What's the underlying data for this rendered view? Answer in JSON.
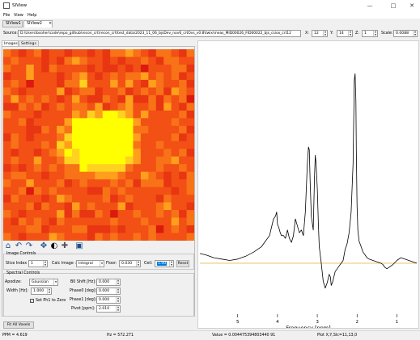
{
  "window": {
    "title": "SIView"
  },
  "menu": [
    "File",
    "View",
    "Help"
  ],
  "doc_tabs": [
    {
      "label": "SIView1"
    },
    {
      "label": "SIView2"
    }
  ],
  "source": {
    "label": "Source:",
    "path": "D:\\Users\\bsoher\\code\\repo_github\\recon_crt\\recon_crt\\test_data\\2023_11_06_bjsDev_nov6_crtOvs_v0.8\\twix\\meas_MID00026_FID00022_bjs_csiox_crt12",
    "x_label": "X:",
    "x_value": "12",
    "y_label": "Y:",
    "y_value": "14",
    "z_label": "Z:",
    "z_value": "1",
    "scale_label": "Scale:",
    "scale_value": "0.0088"
  },
  "left_tabs": [
    {
      "label": "Images"
    },
    {
      "label": "Settings"
    }
  ],
  "heatmap": {
    "colors": [
      "#dc1a0d",
      "#e83512",
      "#f25015",
      "#f87218",
      "#ff9f1c",
      "#ffd21f",
      "#ffff00"
    ],
    "rows": [
      "3212312212212133432133213",
      "2322212134322121223213322",
      "3224213222212112120222331",
      "1224222123421232334232312",
      "2320222133522242421432231",
      "3212222412331223123231432",
      "2423232124211321411313230",
      "1132312323324123422314213",
      "3222122224354665424222231",
      "2231222246666666642222322",
      "2221132436666666633222231",
      "1321222356666666642222312",
      "2322232546666666632232222",
      "2122123465666666642223231",
      "2322422355666666542233422",
      "1212323233655555322232232",
      "2332212233334443224321213",
      "3224222312322232313331223",
      "2230323222211323222222123",
      "1322212432222312322213222",
      "2223132214232224122234221",
      "3212222413113202232232313",
      "2132321322222232223222423",
      "2223312223311121222302321",
      "3212224322213232232322223"
    ]
  },
  "toolbar_icons": [
    "home-icon",
    "undo-icon",
    "redo-icon",
    "pan-icon",
    "contrast-icon",
    "crosshair-icon",
    "save-icon"
  ],
  "image_controls": {
    "title": "Image Controls",
    "slice_label": "Slice Index :",
    "slice_value": "1",
    "calc_label": "Calc Image :",
    "calc_value": "Integral",
    "floor_label": "Floor:",
    "floor_value": "0.030",
    "ceil_label": "Ceil:",
    "ceil_value": "1.00",
    "reset_label": "Reset"
  },
  "spectral_controls": {
    "title": "Spectral Controls",
    "apodize_label": "Apodize:",
    "apodize_value": "Gaussian",
    "width_label": "Width [Hz]:",
    "width_value": "1.000",
    "setph_label": "Set Ph1 to Zero",
    "setph_checked": "✓",
    "b0_label": "B0 Shift [Hz]:",
    "b0_value": "0.000",
    "phase0_label": "Phase0 [deg]:",
    "phase0_value": "0.000",
    "phase1_label": "Phase1 [deg]:",
    "phase1_value": "0.000",
    "pivot_label": "Pivot [ppm]:",
    "pivot_value": "2.010"
  },
  "fit_button": "Fit All Voxels",
  "status": {
    "ppm": "PPM = 4.619",
    "hz": "Hz = 572.271",
    "value": "Value = 0.004475394803440 91",
    "plot": "Plot X,Y,Slc=11,13,0"
  },
  "chart_data": {
    "type": "line",
    "title": "",
    "xlabel": "Frequency [ppm]",
    "ylabel": "",
    "xlim": [
      5.95,
      0.5
    ],
    "x_reversed": true,
    "xticks": [
      5,
      4,
      3,
      2,
      1
    ],
    "baseline_color": "#e8b84a",
    "line_color": "#000000",
    "series": [
      {
        "x": [
          5.95,
          5.8,
          5.6,
          5.4,
          5.2,
          5.0,
          4.8,
          4.6,
          4.4,
          4.3,
          4.2,
          4.15,
          4.1,
          4.05,
          4.02,
          4.0,
          3.97,
          3.93,
          3.9,
          3.85,
          3.8,
          3.75,
          3.7,
          3.65,
          3.6,
          3.55,
          3.5,
          3.45,
          3.4,
          3.35,
          3.3,
          3.25,
          3.22,
          3.2,
          3.18,
          3.15,
          3.1,
          3.07,
          3.05,
          3.03,
          3.0,
          2.97,
          2.95,
          2.9,
          2.85,
          2.8,
          2.75,
          2.7,
          2.67,
          2.65,
          2.62,
          2.6,
          2.55,
          2.5,
          2.45,
          2.4,
          2.35,
          2.3,
          2.25,
          2.2,
          2.15,
          2.1,
          2.07,
          2.05,
          2.03,
          2.02,
          2.0,
          1.98,
          1.95,
          1.9,
          1.85,
          1.8,
          1.75,
          1.7,
          1.6,
          1.5,
          1.4,
          1.35,
          1.3,
          1.25,
          1.2,
          1.1,
          1.0,
          0.9,
          0.8,
          0.7,
          0.6,
          0.5
        ],
        "y": [
          0.25,
          0.24,
          0.22,
          0.21,
          0.2,
          0.21,
          0.23,
          0.26,
          0.3,
          0.34,
          0.38,
          0.44,
          0.5,
          0.52,
          0.55,
          0.46,
          0.44,
          0.4,
          0.38,
          0.38,
          0.36,
          0.42,
          0.36,
          0.33,
          0.38,
          0.5,
          0.45,
          0.4,
          0.42,
          0.38,
          0.55,
          0.9,
          1.02,
          1.0,
          0.78,
          0.52,
          0.42,
          0.8,
          0.96,
          0.9,
          0.72,
          0.45,
          0.3,
          0.18,
          0.05,
          0.0,
          0.04,
          0.1,
          0.08,
          0.02,
          0.04,
          0.06,
          0.12,
          0.14,
          0.16,
          0.18,
          0.2,
          0.28,
          0.32,
          0.4,
          0.55,
          0.9,
          1.5,
          1.55,
          1.35,
          1.0,
          0.6,
          0.42,
          0.34,
          0.3,
          0.26,
          0.24,
          0.22,
          0.21,
          0.2,
          0.19,
          0.18,
          0.17,
          0.15,
          0.14,
          0.15,
          0.17,
          0.2,
          0.22,
          0.21,
          0.2,
          0.19,
          0.18
        ]
      }
    ],
    "ylim": [
      -0.2,
      1.75
    ]
  }
}
